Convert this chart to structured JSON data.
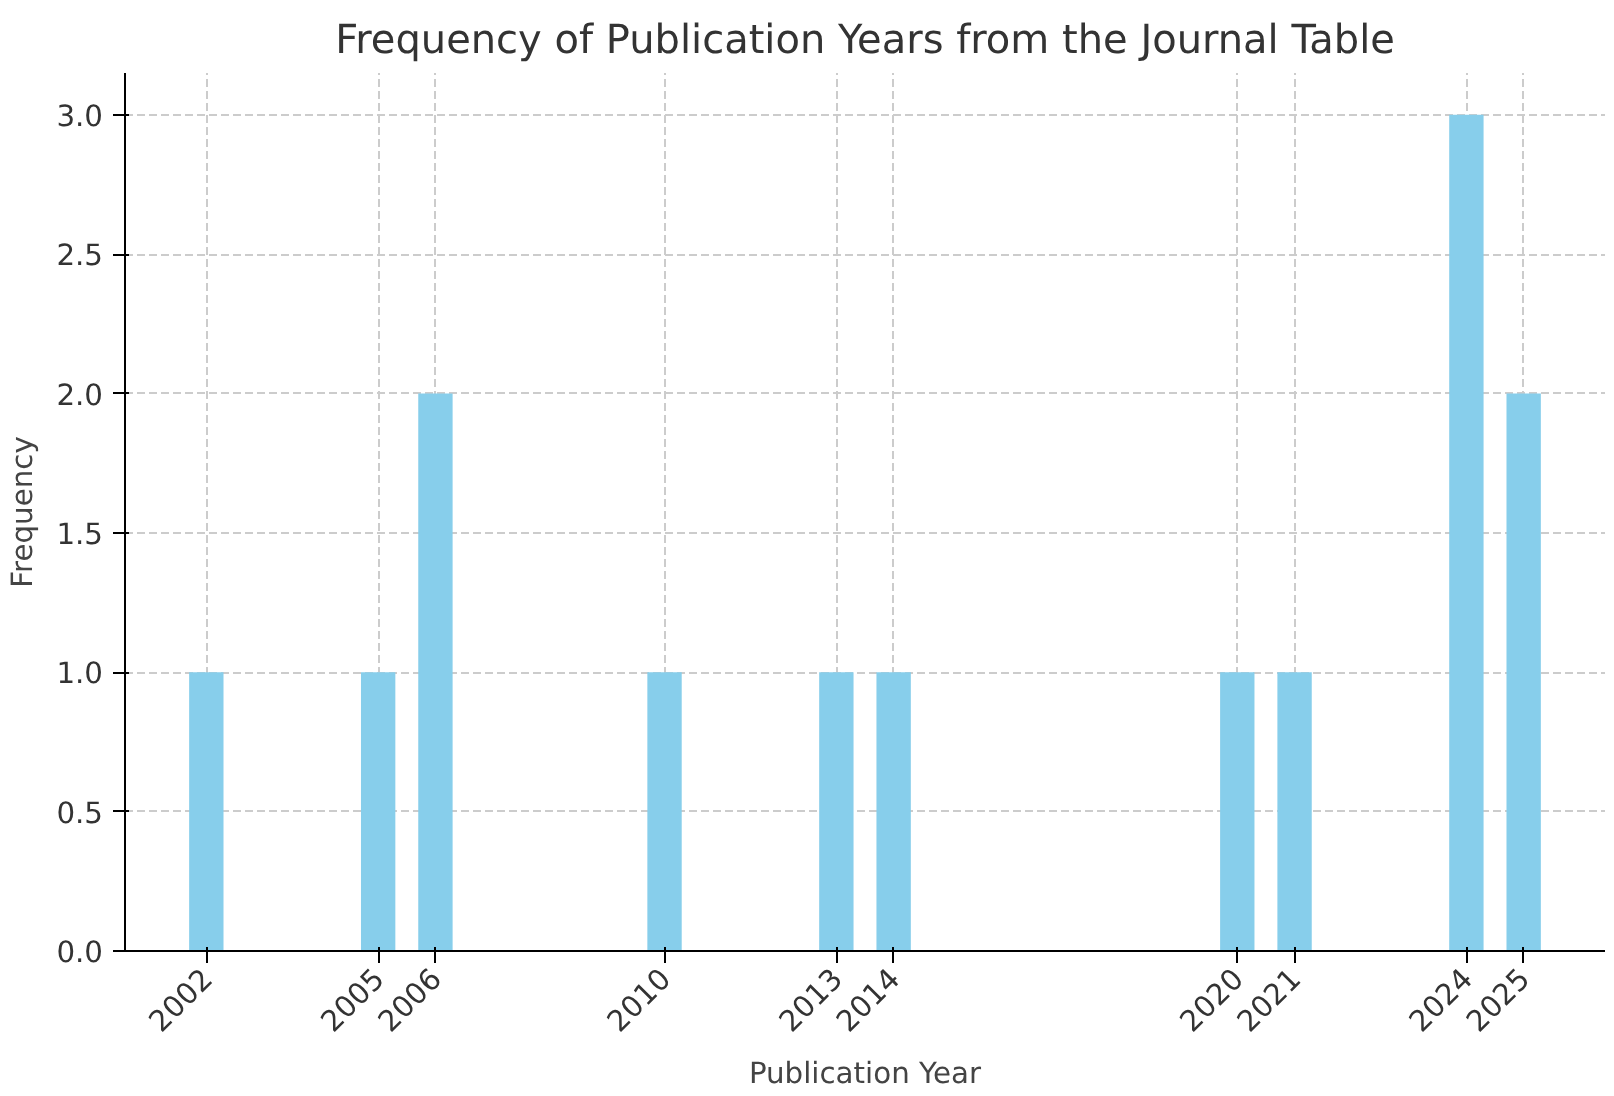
{
  "chart_data": {
    "type": "bar",
    "title": "Frequency of Publication Years from the Journal Table",
    "xlabel": "Publication Year",
    "ylabel": "Frequency",
    "x": [
      2002,
      2005,
      2006,
      2010,
      2013,
      2014,
      2020,
      2021,
      2024,
      2025
    ],
    "values": [
      1,
      1,
      2,
      1,
      1,
      1,
      1,
      1,
      3,
      2
    ],
    "color": "#87ceeb",
    "xlim": [
      2000.58,
      2026.42
    ],
    "ylim": [
      0,
      3.15
    ],
    "xticks": [
      2002,
      2005,
      2006,
      2010,
      2013,
      2014,
      2020,
      2021,
      2024,
      2025
    ],
    "yticks": [
      {
        "value": 0,
        "label": "0.0"
      },
      {
        "value": 0.5,
        "label": "0.5"
      },
      {
        "value": 1,
        "label": "1.0"
      },
      {
        "value": 1.5,
        "label": "1.5"
      },
      {
        "value": 2,
        "label": "2.0"
      },
      {
        "value": 2.5,
        "label": "2.5"
      },
      {
        "value": 3,
        "label": "3.0"
      }
    ],
    "grid": true
  }
}
